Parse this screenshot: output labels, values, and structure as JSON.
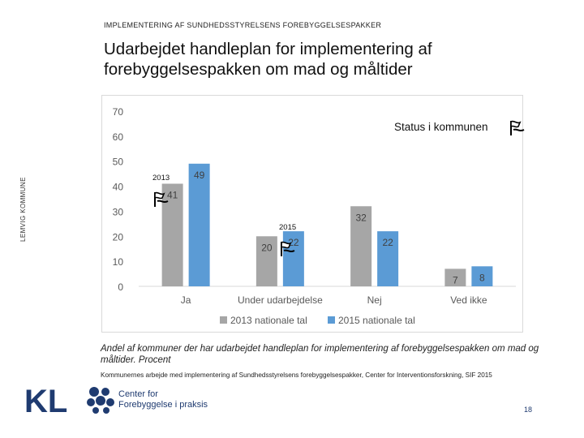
{
  "header": {
    "supertitle": "IMPLEMENTERING AF SUNDHEDSSTYRELSENS FOREBYGGELSESPAKKER",
    "title": "Udarbejdet handleplan for implementering af forebyggelsespakken om mad og måltider"
  },
  "side_label": "LEMVIG KOMMUNE",
  "annotations": {
    "status": "Status i kommunen",
    "marker_2013": "2013",
    "marker_2015": "2015"
  },
  "chart_data": {
    "type": "bar",
    "categories": [
      "Ja",
      "Under udarbejdelse",
      "Nej",
      "Ved ikke"
    ],
    "series": [
      {
        "name": "2013 nationale tal",
        "values": [
          41,
          20,
          32,
          7
        ],
        "color": "#a6a6a6"
      },
      {
        "name": "2015 nationale tal",
        "values": [
          49,
          22,
          22,
          8
        ],
        "color": "#5b9bd5"
      }
    ],
    "ylim": [
      0,
      70
    ],
    "yticks": [
      0,
      10,
      20,
      30,
      40,
      50,
      60,
      70
    ],
    "legend": "bottom",
    "grid": false
  },
  "caption": "Andel af kommuner der har udarbejdet handleplan for implementering af forebyggelsespakken om mad og måltider. Procent",
  "source": "Kommunernes arbejde med implementering af Sundhedsstyrelsens forebyggelsespakker, Center for Interventionsforskning, SIF 2015",
  "footer": {
    "kl_logo_text": "KL",
    "center_line1": "Center for",
    "center_line2": "Forebyggelse i praksis",
    "page_number": "18",
    "brand_color": "#1f3b70"
  }
}
